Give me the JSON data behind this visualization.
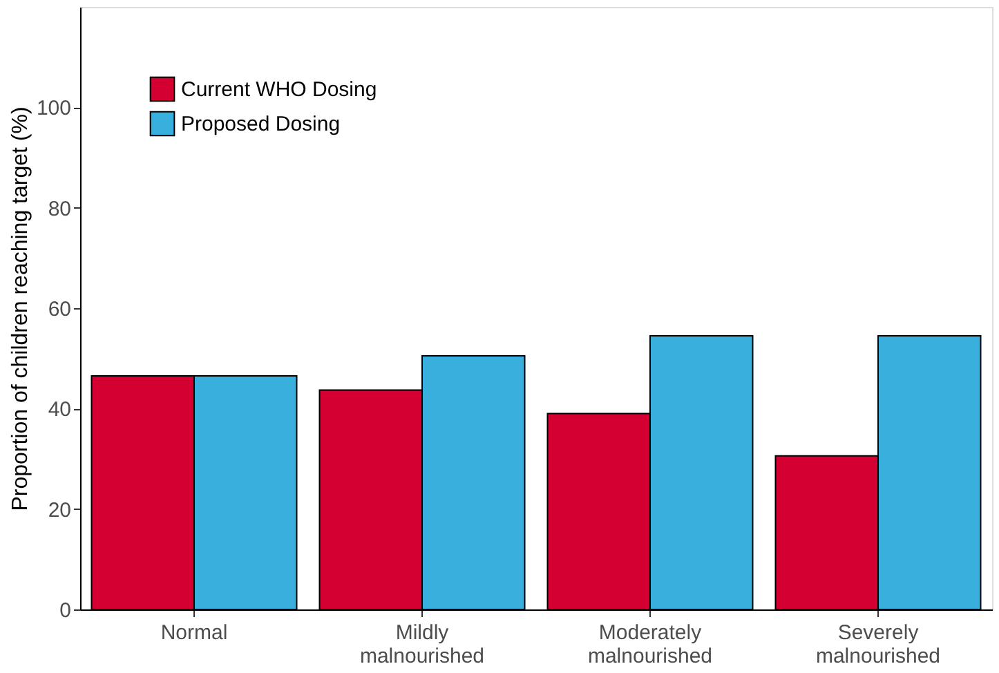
{
  "chart_data": {
    "type": "bar",
    "ylabel": "Proportion of children reaching target (%)",
    "categories": [
      "Normal",
      "Mildly\nmalnourished",
      "Moderately\nmalnourished",
      "Severely\nmalnourished"
    ],
    "series": [
      {
        "name": "Current WHO Dosing",
        "color": "#d40031",
        "values": [
          46.5,
          43.7,
          39,
          30.6
        ]
      },
      {
        "name": "Proposed Dosing",
        "color": "#38afdd",
        "values": [
          46.5,
          50.5,
          54.5,
          54.5
        ]
      }
    ],
    "ylim": [
      0,
      120
    ],
    "yticks": [
      0,
      20,
      40,
      60,
      80,
      100
    ],
    "grid": false,
    "legend": "top left"
  }
}
